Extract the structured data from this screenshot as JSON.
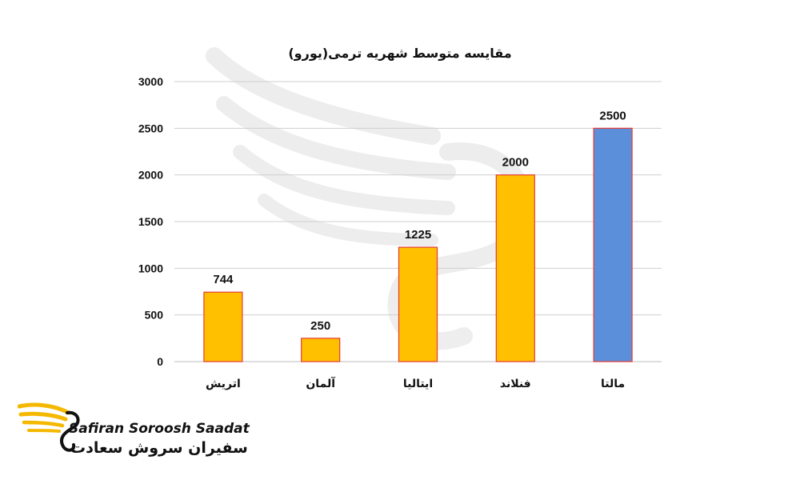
{
  "chart_data": {
    "type": "bar",
    "title": "مقایسه متوسط شهریه ترمی(یورو)",
    "categories": [
      "اتریش",
      "آلمان",
      "ایتالیا",
      "فنلاند",
      "مالتا"
    ],
    "values": [
      744,
      250,
      1225,
      2000,
      2500
    ],
    "data_labels": [
      "744",
      "250",
      "1225",
      "2000",
      "2500"
    ],
    "bar_colors": [
      "#FFC000",
      "#FFC000",
      "#FFC000",
      "#FFC000",
      "#5B8FD9"
    ],
    "bar_outline": "#E53935",
    "ylim": [
      0,
      3000
    ],
    "yticks": [
      0,
      500,
      1000,
      1500,
      2000,
      2500,
      3000
    ],
    "grid": true,
    "legend": "none",
    "xlabel": "",
    "ylabel": ""
  },
  "brand": {
    "name_en": "Safiran Soroosh Saadat",
    "name_fa": "سفیران سروش سعادت",
    "accent": "#F5B800"
  }
}
